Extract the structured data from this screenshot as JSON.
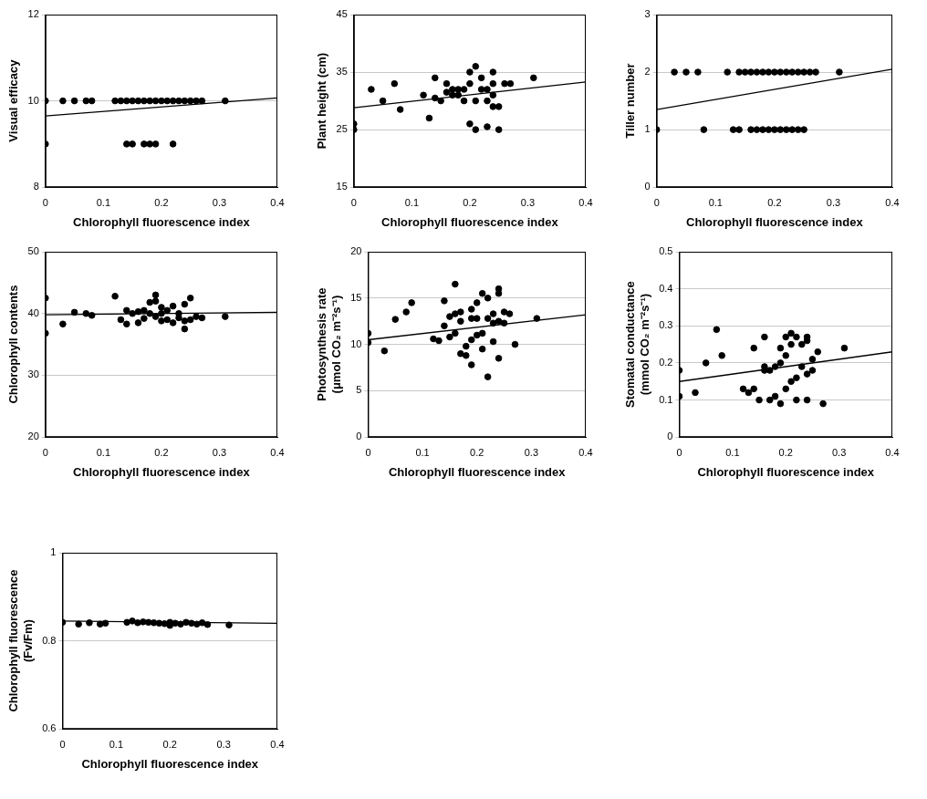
{
  "chart_data": [
    {
      "type": "scatter",
      "x_label": "Chlorophyll fluorescence index",
      "y_label": [
        "Visual efficacy"
      ],
      "xlim": [
        0,
        0.4
      ],
      "xticks": [
        0,
        0.1,
        0.2,
        0.3,
        0.4
      ],
      "ylim": [
        8,
        12
      ],
      "yticks": [
        8,
        10,
        12
      ],
      "grid": true,
      "series": [
        {
          "type": "scatter",
          "color": "#000000",
          "marker": "circle",
          "x": [
            0,
            0.03,
            0.05,
            0.07,
            0.08,
            0.12,
            0.13,
            0.14,
            0.15,
            0.16,
            0.17,
            0.18,
            0.19,
            0.2,
            0.21,
            0.22,
            0.23,
            0.24,
            0.25,
            0.26,
            0.27,
            0.31,
            0,
            0.14,
            0.15,
            0.17,
            0.18,
            0.19,
            0.22
          ],
          "values": [
            10,
            10,
            10,
            10,
            10,
            10,
            10,
            10,
            10,
            10,
            10,
            10,
            10,
            10,
            10,
            10,
            10,
            10,
            10,
            10,
            10,
            10,
            9,
            9,
            9,
            9,
            9,
            9,
            9
          ]
        },
        {
          "type": "line",
          "color": "#000000",
          "line_style": "solid",
          "x": [
            0,
            0.4
          ],
          "values": [
            9.65,
            10.07
          ]
        }
      ]
    },
    {
      "type": "scatter",
      "x_label": "Chlorophyll fluorescence index",
      "y_label": [
        "Plant height (cm)"
      ],
      "xlim": [
        0,
        0.4
      ],
      "xticks": [
        0,
        0.1,
        0.2,
        0.3,
        0.4
      ],
      "ylim": [
        15,
        45
      ],
      "yticks": [
        15,
        25,
        35,
        45
      ],
      "grid": true,
      "series": [
        {
          "type": "scatter",
          "color": "#000000",
          "marker": "circle",
          "x": [
            0,
            0,
            0.03,
            0.05,
            0.07,
            0.08,
            0.12,
            0.13,
            0.14,
            0.14,
            0.15,
            0.16,
            0.16,
            0.17,
            0.17,
            0.18,
            0.18,
            0.19,
            0.19,
            0.2,
            0.2,
            0.2,
            0.21,
            0.21,
            0.21,
            0.22,
            0.22,
            0.23,
            0.23,
            0.23,
            0.24,
            0.24,
            0.24,
            0.24,
            0.25,
            0.25,
            0.26,
            0.27,
            0.31
          ],
          "values": [
            25,
            26,
            32,
            30,
            33,
            28.5,
            31,
            27,
            34,
            30.5,
            30,
            31.5,
            33,
            31,
            32,
            32,
            31,
            30,
            32,
            26,
            35,
            33,
            25,
            36,
            30,
            32,
            34,
            30,
            25.5,
            32,
            33,
            35,
            29,
            31,
            29,
            25,
            33,
            33,
            34
          ]
        },
        {
          "type": "line",
          "color": "#000000",
          "line_style": "solid",
          "x": [
            0,
            0.4
          ],
          "values": [
            28.8,
            33.3
          ]
        }
      ]
    },
    {
      "type": "scatter",
      "x_label": "Chlorophyll fluorescence index",
      "y_label": [
        "Tiller number"
      ],
      "xlim": [
        0,
        0.4
      ],
      "xticks": [
        0,
        0.1,
        0.2,
        0.3,
        0.4
      ],
      "ylim": [
        0,
        3
      ],
      "yticks": [
        0,
        1,
        2,
        3
      ],
      "grid": true,
      "series": [
        {
          "type": "scatter",
          "color": "#000000",
          "marker": "circle",
          "x": [
            0.03,
            0.05,
            0.07,
            0.12,
            0.14,
            0.15,
            0.16,
            0.17,
            0.18,
            0.19,
            0.2,
            0.21,
            0.22,
            0.23,
            0.24,
            0.25,
            0.26,
            0.27,
            0.31,
            0,
            0.08,
            0.13,
            0.14,
            0.16,
            0.17,
            0.18,
            0.19,
            0.2,
            0.21,
            0.22,
            0.23,
            0.24,
            0.25
          ],
          "values": [
            2,
            2,
            2,
            2,
            2,
            2,
            2,
            2,
            2,
            2,
            2,
            2,
            2,
            2,
            2,
            2,
            2,
            2,
            2,
            1,
            1,
            1,
            1,
            1,
            1,
            1,
            1,
            1,
            1,
            1,
            1,
            1,
            1
          ]
        },
        {
          "type": "line",
          "color": "#000000",
          "line_style": "solid",
          "x": [
            0,
            0.4
          ],
          "values": [
            1.35,
            2.05
          ]
        }
      ]
    },
    {
      "type": "scatter",
      "x_label": "Chlorophyll fluorescence index",
      "y_label": [
        "Chlorophyll contents"
      ],
      "xlim": [
        0,
        0.4
      ],
      "xticks": [
        0,
        0.1,
        0.2,
        0.3,
        0.4
      ],
      "ylim": [
        20,
        50
      ],
      "yticks": [
        20,
        30,
        40,
        50
      ],
      "grid": true,
      "series": [
        {
          "type": "scatter",
          "color": "#000000",
          "marker": "circle",
          "x": [
            0,
            0,
            0.03,
            0.05,
            0.07,
            0.08,
            0.12,
            0.13,
            0.14,
            0.14,
            0.15,
            0.16,
            0.16,
            0.17,
            0.17,
            0.18,
            0.18,
            0.19,
            0.19,
            0.19,
            0.2,
            0.2,
            0.2,
            0.21,
            0.21,
            0.22,
            0.22,
            0.23,
            0.23,
            0.24,
            0.24,
            0.24,
            0.25,
            0.25,
            0.26,
            0.27,
            0.31
          ],
          "values": [
            42.5,
            36.8,
            38.3,
            40.2,
            40,
            39.7,
            42.8,
            39,
            40.5,
            38.3,
            40,
            40.3,
            38.5,
            40.5,
            39.2,
            41.8,
            40,
            43,
            42,
            39.5,
            41,
            40,
            38.8,
            40.5,
            39,
            41.2,
            38.5,
            40,
            39.3,
            41.5,
            37.5,
            38.8,
            42.5,
            39,
            39.5,
            39.3,
            39.5
          ]
        },
        {
          "type": "line",
          "color": "#000000",
          "line_style": "solid",
          "x": [
            0,
            0.4
          ],
          "values": [
            39.8,
            40.2
          ]
        }
      ]
    },
    {
      "type": "scatter",
      "x_label": "Chlorophyll fluorescence index",
      "y_label": [
        "Photosynthesis rate",
        "(μmol CO₂ m⁻²s⁻¹)"
      ],
      "xlim": [
        0,
        0.4
      ],
      "xticks": [
        0,
        0.1,
        0.2,
        0.3,
        0.4
      ],
      "ylim": [
        0,
        20
      ],
      "yticks": [
        0,
        5,
        10,
        15,
        20
      ],
      "grid": true,
      "series": [
        {
          "type": "scatter",
          "color": "#000000",
          "marker": "circle",
          "x": [
            0,
            0,
            0.03,
            0.05,
            0.07,
            0.08,
            0.12,
            0.13,
            0.14,
            0.14,
            0.15,
            0.15,
            0.16,
            0.16,
            0.16,
            0.17,
            0.17,
            0.17,
            0.18,
            0.18,
            0.19,
            0.19,
            0.19,
            0.19,
            0.2,
            0.2,
            0.2,
            0.21,
            0.21,
            0.21,
            0.22,
            0.22,
            0.22,
            0.23,
            0.23,
            0.23,
            0.24,
            0.24,
            0.24,
            0.24,
            0.25,
            0.25,
            0.26,
            0.27,
            0.31
          ],
          "values": [
            11.2,
            10.2,
            9.3,
            12.7,
            13.5,
            14.5,
            10.6,
            10.4,
            14.7,
            12,
            10.8,
            13,
            16.5,
            11.2,
            13.3,
            9,
            12.5,
            13.5,
            9.8,
            8.8,
            12.8,
            10.5,
            7.8,
            13.8,
            11,
            14.5,
            12.8,
            15.5,
            9.5,
            11.2,
            6.5,
            12.8,
            15,
            10.3,
            12.3,
            13.3,
            16,
            15.5,
            8.5,
            12.5,
            13.5,
            12.3,
            13.3,
            10,
            12.8
          ]
        },
        {
          "type": "line",
          "color": "#000000",
          "line_style": "solid",
          "x": [
            0,
            0.4
          ],
          "values": [
            10.5,
            13.2
          ]
        }
      ]
    },
    {
      "type": "scatter",
      "x_label": "Chlorophyll fluorescence index",
      "y_label": [
        "Stomatal conductance",
        "(mmol CO₂ m⁻²s⁻¹)"
      ],
      "xlim": [
        0,
        0.4
      ],
      "xticks": [
        0,
        0.1,
        0.2,
        0.3,
        0.4
      ],
      "ylim": [
        0,
        0.5
      ],
      "yticks": [
        0,
        0.1,
        0.2,
        0.3,
        0.4,
        0.5
      ],
      "grid": true,
      "series": [
        {
          "type": "scatter",
          "color": "#000000",
          "marker": "circle",
          "x": [
            0,
            0,
            0.03,
            0.05,
            0.07,
            0.08,
            0.12,
            0.13,
            0.14,
            0.14,
            0.15,
            0.16,
            0.16,
            0.16,
            0.17,
            0.17,
            0.18,
            0.18,
            0.19,
            0.19,
            0.19,
            0.2,
            0.2,
            0.2,
            0.21,
            0.21,
            0.21,
            0.22,
            0.22,
            0.22,
            0.23,
            0.23,
            0.24,
            0.24,
            0.24,
            0.24,
            0.25,
            0.25,
            0.26,
            0.27,
            0.31
          ],
          "values": [
            0.18,
            0.11,
            0.12,
            0.2,
            0.29,
            0.22,
            0.13,
            0.12,
            0.24,
            0.13,
            0.1,
            0.27,
            0.19,
            0.18,
            0.1,
            0.18,
            0.19,
            0.11,
            0.24,
            0.09,
            0.2,
            0.27,
            0.13,
            0.22,
            0.28,
            0.15,
            0.25,
            0.27,
            0.1,
            0.16,
            0.19,
            0.25,
            0.27,
            0.17,
            0.1,
            0.26,
            0.21,
            0.18,
            0.23,
            0.09,
            0.24
          ]
        },
        {
          "type": "line",
          "color": "#000000",
          "line_style": "solid",
          "x": [
            0,
            0.4
          ],
          "values": [
            0.15,
            0.23
          ]
        }
      ]
    },
    {
      "type": "scatter",
      "x_label": "Chlorophyll fluorescence index",
      "y_label": [
        "Chlorophyll fluorescence",
        "(Fv/Fm)"
      ],
      "xlim": [
        0,
        0.4
      ],
      "xticks": [
        0,
        0.1,
        0.2,
        0.3,
        0.4
      ],
      "ylim": [
        0.6,
        1
      ],
      "yticks": [
        0.6,
        0.8,
        1
      ],
      "grid": true,
      "series": [
        {
          "type": "scatter",
          "color": "#000000",
          "marker": "circle",
          "x": [
            0,
            0.03,
            0.05,
            0.07,
            0.08,
            0.12,
            0.13,
            0.14,
            0.15,
            0.16,
            0.17,
            0.18,
            0.19,
            0.2,
            0.2,
            0.21,
            0.22,
            0.23,
            0.24,
            0.25,
            0.26,
            0.27,
            0.31
          ],
          "values": [
            0.842,
            0.838,
            0.841,
            0.838,
            0.84,
            0.842,
            0.845,
            0.841,
            0.843,
            0.842,
            0.841,
            0.84,
            0.839,
            0.842,
            0.835,
            0.84,
            0.838,
            0.842,
            0.84,
            0.838,
            0.841,
            0.837,
            0.836
          ]
        },
        {
          "type": "line",
          "color": "#000000",
          "line_style": "solid",
          "x": [
            0,
            0.4
          ],
          "values": [
            0.845,
            0.84
          ]
        }
      ]
    }
  ]
}
